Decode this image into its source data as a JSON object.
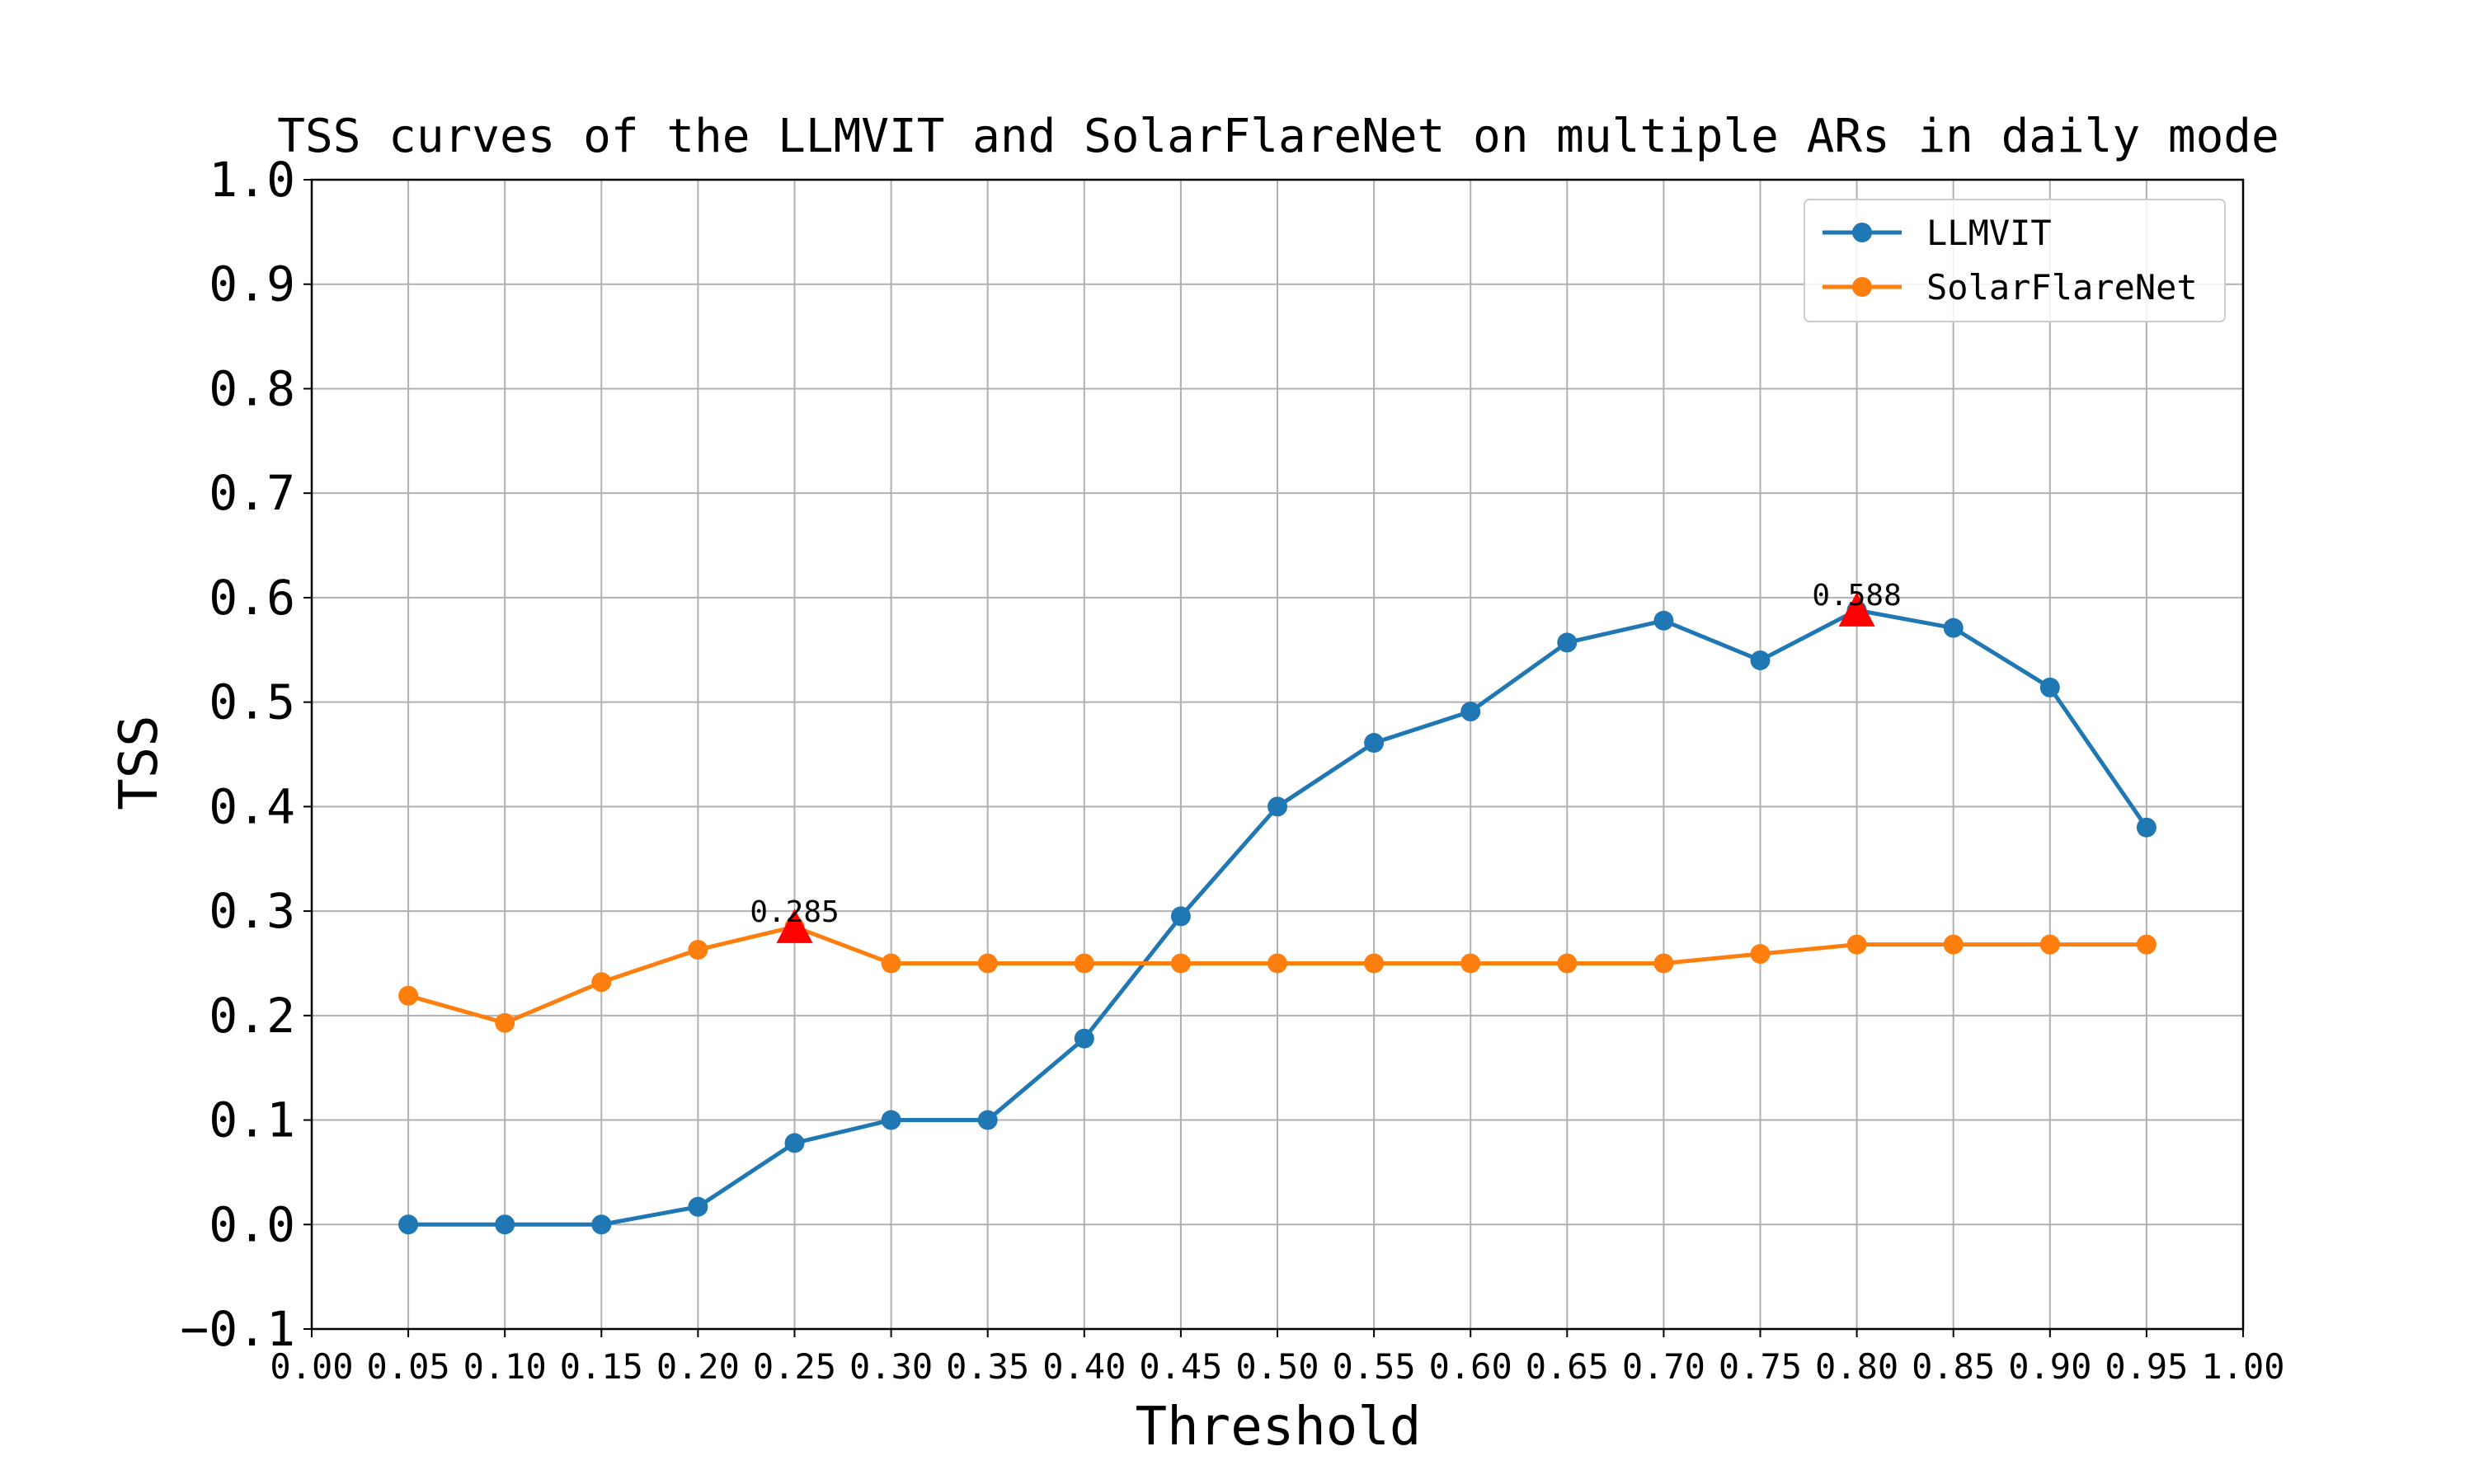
{
  "chart_data": {
    "type": "line",
    "title": "TSS curves of the LLMVIT and SolarFlareNet on multiple ARs in daily mode",
    "xlabel": "Threshold",
    "ylabel": "TSS",
    "xlim": [
      0.0,
      1.0
    ],
    "ylim": [
      -0.1,
      1.0
    ],
    "x_ticks": [
      "0.00",
      "0.05",
      "0.10",
      "0.15",
      "0.20",
      "0.25",
      "0.30",
      "0.35",
      "0.40",
      "0.45",
      "0.50",
      "0.55",
      "0.60",
      "0.65",
      "0.70",
      "0.75",
      "0.80",
      "0.85",
      "0.90",
      "0.95",
      "1.00"
    ],
    "y_ticks": [
      "−0.1",
      "0.0",
      "0.1",
      "0.2",
      "0.3",
      "0.4",
      "0.5",
      "0.6",
      "0.7",
      "0.8",
      "0.9",
      "1.0"
    ],
    "grid": true,
    "legend_position": "top-right",
    "x": [
      0.05,
      0.1,
      0.15,
      0.2,
      0.25,
      0.3,
      0.35,
      0.4,
      0.45,
      0.5,
      0.55,
      0.6,
      0.65,
      0.7,
      0.75,
      0.8,
      0.85,
      0.9,
      0.95
    ],
    "series": [
      {
        "name": "LLMVIT",
        "color": "#1f77b4",
        "values": [
          0.0,
          0.0,
          0.0,
          0.017,
          0.078,
          0.1,
          0.1,
          0.178,
          0.295,
          0.4,
          0.461,
          0.491,
          0.557,
          0.578,
          0.54,
          0.588,
          0.571,
          0.514,
          0.38
        ]
      },
      {
        "name": "SolarFlareNet",
        "color": "#ff7f0e",
        "values": [
          0.219,
          0.193,
          0.232,
          0.263,
          0.285,
          0.25,
          0.25,
          0.25,
          0.25,
          0.25,
          0.25,
          0.25,
          0.25,
          0.25,
          0.259,
          0.268,
          0.268,
          0.268,
          0.268
        ]
      }
    ],
    "annotations": [
      {
        "x": 0.25,
        "y": 0.285,
        "text": "0.285",
        "marker_color": "#ff0000"
      },
      {
        "x": 0.8,
        "y": 0.588,
        "text": "0.588",
        "marker_color": "#ff0000"
      }
    ]
  }
}
